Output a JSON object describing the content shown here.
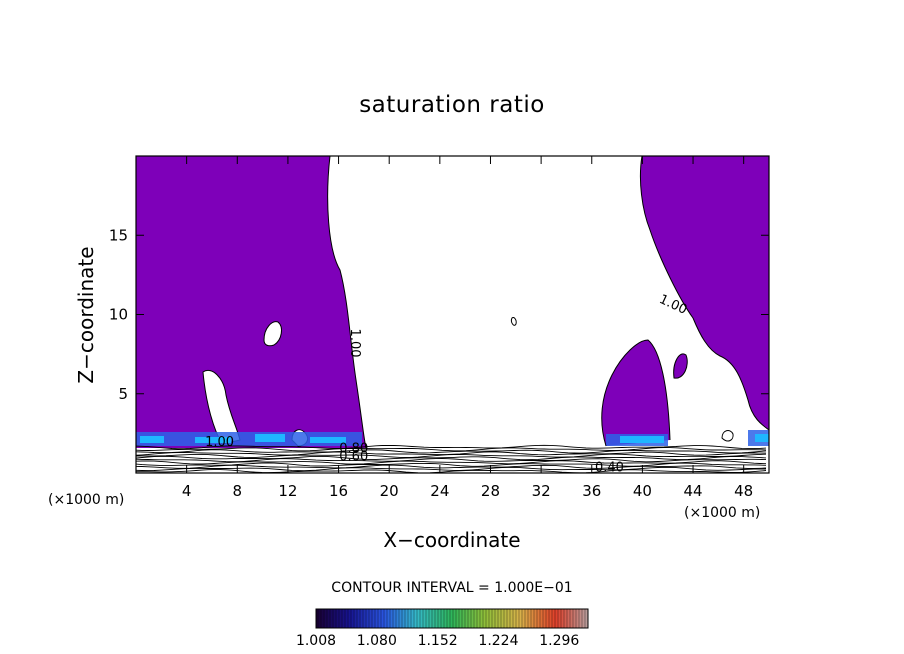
{
  "chart_data": {
    "type": "contour",
    "title": "saturation ratio",
    "xlabel": "X−coordinate",
    "ylabel": "Z−coordinate",
    "x_unit_left": "(×1000 m)",
    "x_unit_right": "(×1000 m)",
    "xlim": [
      0,
      50
    ],
    "ylim": [
      0,
      20
    ],
    "x_ticks": [
      4,
      8,
      12,
      16,
      20,
      24,
      28,
      32,
      36,
      40,
      44,
      48
    ],
    "y_ticks": [
      5,
      10,
      15
    ],
    "contour_interval_text": "CONTOUR INTERVAL = 1.000E−01",
    "colorbar_labels": [
      "1.008",
      "1.080",
      "1.152",
      "1.224",
      "1.296"
    ],
    "colorbar_range": [
      1.008,
      1.33
    ],
    "contour_labels": [
      {
        "text": "1.00",
        "x": 17.0,
        "z": 8.2,
        "rotate": 90
      },
      {
        "text": "1.00",
        "x": 42.3,
        "z": 10.4,
        "rotate": 25
      },
      {
        "text": "1.00",
        "x": 6.6,
        "z": 1.7,
        "rotate": 0
      },
      {
        "text": "0.80",
        "x": 17.2,
        "z": 1.3,
        "rotate": 0
      },
      {
        "text": "0.60",
        "x": 17.2,
        "z": 0.8,
        "rotate": 0
      },
      {
        "text": "0.40",
        "x": 37.4,
        "z": 0.1,
        "rotate": 0
      }
    ],
    "colors": {
      "supersaturated_fill": "#7e00b9",
      "subsaturated_fill": "#ffffff",
      "cyan_band": "#1fb6ff",
      "blue_band": "#2d62e8",
      "contour_line": "#000000"
    }
  }
}
